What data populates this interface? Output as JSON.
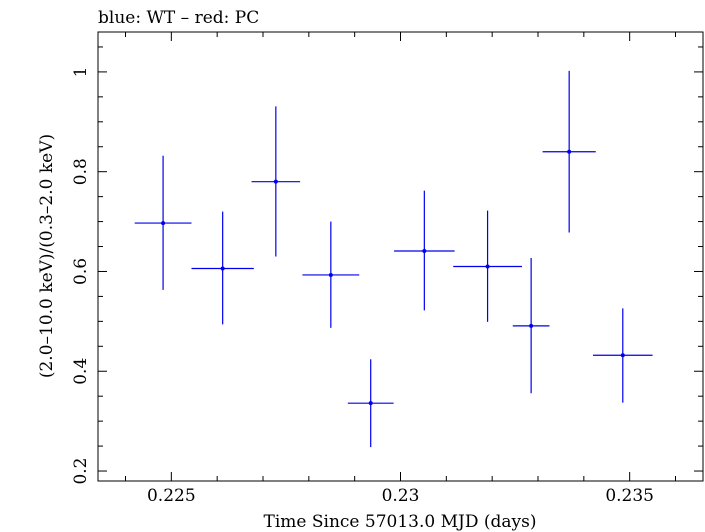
{
  "chart_data": {
    "type": "scatter",
    "title": "blue: WT – red: PC",
    "xlabel": "Time Since 57013.0 MJD (days)",
    "ylabel": "(2.0–10.0 keV)/(0.3–2.0 keV)",
    "xlim": [
      0.2234,
      0.2366
    ],
    "ylim": [
      0.18,
      1.08
    ],
    "xticks": [
      0.225,
      0.23,
      0.235
    ],
    "xtick_labels": [
      "0.225",
      "0.23",
      "0.235"
    ],
    "yticks": [
      0.2,
      0.4,
      0.6,
      0.8,
      1.0
    ],
    "ytick_labels": [
      "0.2",
      "0.4",
      "0.6",
      "0.8",
      "1"
    ],
    "grid": false,
    "series": [
      {
        "color": "#0000ee",
        "points": [
          {
            "x": 0.22482,
            "y": 0.697,
            "xerr": 0.00062,
            "ylo": 0.563,
            "yhi": 0.832
          },
          {
            "x": 0.22612,
            "y": 0.606,
            "xerr": 0.00068,
            "ylo": 0.494,
            "yhi": 0.72
          },
          {
            "x": 0.22728,
            "y": 0.78,
            "xerr": 0.00053,
            "ylo": 0.63,
            "yhi": 0.931
          },
          {
            "x": 0.22848,
            "y": 0.593,
            "xerr": 0.00062,
            "ylo": 0.487,
            "yhi": 0.7
          },
          {
            "x": 0.22935,
            "y": 0.336,
            "xerr": 0.0005,
            "ylo": 0.248,
            "yhi": 0.424
          },
          {
            "x": 0.23052,
            "y": 0.641,
            "xerr": 0.00066,
            "ylo": 0.522,
            "yhi": 0.762
          },
          {
            "x": 0.2319,
            "y": 0.61,
            "xerr": 0.00075,
            "ylo": 0.499,
            "yhi": 0.722
          },
          {
            "x": 0.23285,
            "y": 0.491,
            "xerr": 0.0004,
            "ylo": 0.356,
            "yhi": 0.627
          },
          {
            "x": 0.23368,
            "y": 0.84,
            "xerr": 0.00058,
            "ylo": 0.678,
            "yhi": 1.002
          },
          {
            "x": 0.23485,
            "y": 0.432,
            "xerr": 0.00065,
            "ylo": 0.337,
            "yhi": 0.526
          }
        ]
      }
    ]
  }
}
